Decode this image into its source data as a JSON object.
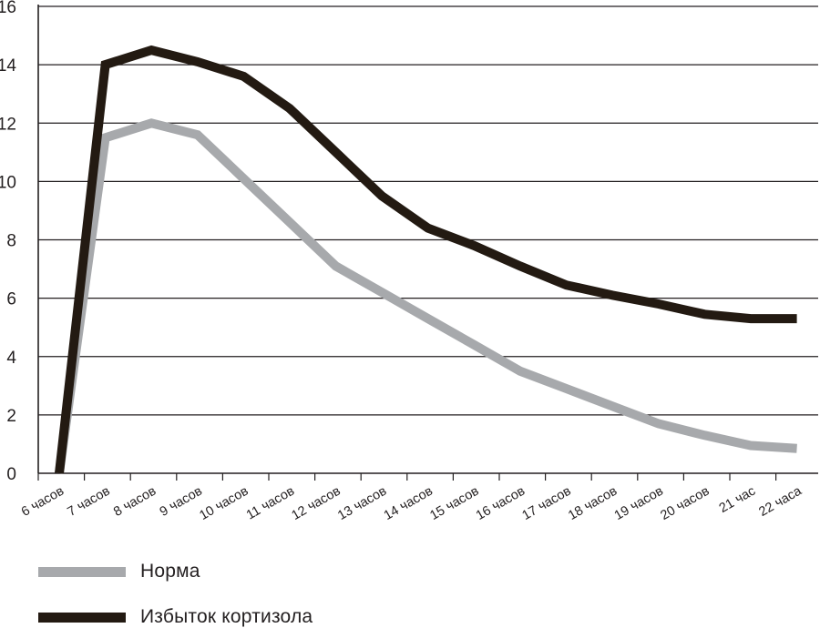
{
  "chart_data": {
    "type": "line",
    "categories": [
      "6 часов",
      "7 часов",
      "8 часов",
      "9 часов",
      "10 часов",
      "11 часов",
      "12 часов",
      "13 часов",
      "14 часов",
      "15 часов",
      "16 часов",
      "17 часов",
      "18 часов",
      "19 часов",
      "20 часов",
      "21 час",
      "22 часа"
    ],
    "series": [
      {
        "name": "Норма",
        "color": "#a7a9ac",
        "values": [
          0,
          11.5,
          12.0,
          11.6,
          10.1,
          8.6,
          7.1,
          6.2,
          5.3,
          4.4,
          3.5,
          2.9,
          2.3,
          1.7,
          1.3,
          0.95,
          0.85
        ]
      },
      {
        "name": "Избыток кортизола",
        "color": "#231a12",
        "values": [
          0,
          14.0,
          14.5,
          14.1,
          13.6,
          12.5,
          11.0,
          9.5,
          8.4,
          7.8,
          7.1,
          6.45,
          6.1,
          5.8,
          5.45,
          5.3,
          5.3
        ]
      }
    ],
    "yticks": [
      0,
      2,
      4,
      6,
      8,
      10,
      12,
      14,
      16
    ],
    "ylim": [
      0,
      16
    ],
    "grid": true,
    "legend_position": "bottom-left"
  }
}
